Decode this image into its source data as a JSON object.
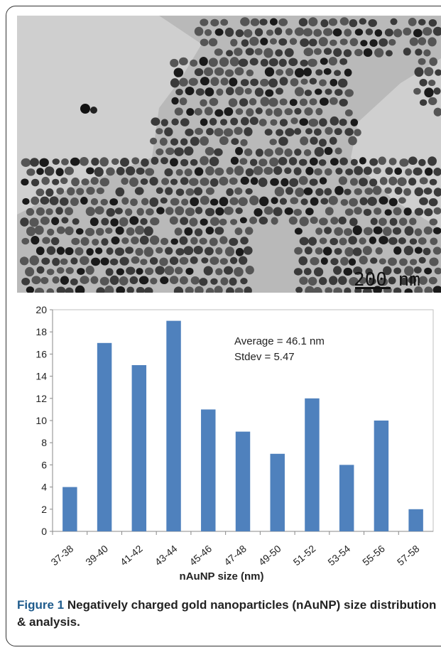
{
  "tem_image": {
    "scale_bar_label": "200 nm"
  },
  "chart_data": {
    "type": "bar",
    "categories": [
      "37-38",
      "39-40",
      "41-42",
      "43-44",
      "45-46",
      "47-48",
      "49-50",
      "51-52",
      "53-54",
      "55-56",
      "57-58"
    ],
    "values": [
      4,
      17,
      15,
      19,
      11,
      9,
      7,
      12,
      6,
      10,
      2
    ],
    "xlabel": "nAuNP size (nm)",
    "ylabel": "",
    "ylim": [
      0,
      20
    ],
    "yticks": [
      0,
      2,
      4,
      6,
      8,
      10,
      12,
      14,
      16,
      18,
      20
    ],
    "annotations": [
      "Average = 46.1 nm",
      "Stdev = 5.47"
    ],
    "bar_color": "#4f81bd",
    "grid": false
  },
  "caption": {
    "label": "Figure 1",
    "text": "Negatively charged gold nanoparticles (nAuNP) size distribution & analysis."
  }
}
